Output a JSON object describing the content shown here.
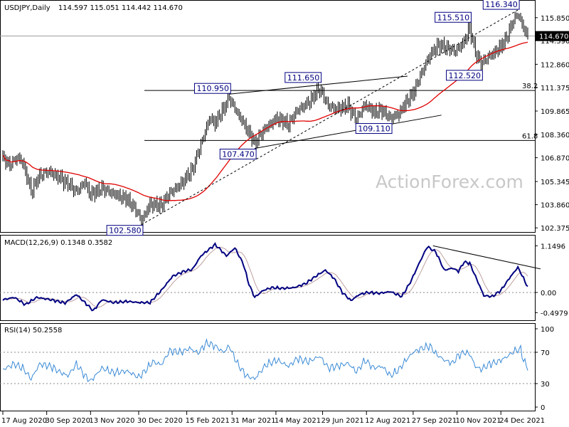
{
  "chart_data": {
    "type": "candlestick",
    "watermark": "ActionForex.com",
    "colors": {
      "price": "#000000",
      "sma": "#e00000",
      "macd": "#000080",
      "signal": "#c0a0a0",
      "rsi": "#3a8ad6",
      "label_box": "#000080",
      "grid": "#000000"
    },
    "price_panel": {
      "title": "USDJPY,Daily",
      "ohlc": "114.597 115.051 114.442 114.670",
      "last_price": "114.670",
      "ylim": [
        102.2,
        116.8
      ],
      "yticks": [
        "115.850",
        "114.390",
        "112.860",
        "111.375",
        "109.865",
        "108.360",
        "106.870",
        "105.345",
        "103.860",
        "102.375"
      ],
      "fib_levels": [
        {
          "label": "38.2",
          "value": 111.18
        },
        {
          "label": "61.8",
          "value": 107.98
        }
      ],
      "swing_labels": [
        {
          "text": "102.580",
          "date_index": 98
        },
        {
          "text": "110.950",
          "date_index": 160
        },
        {
          "text": "107.470",
          "date_index": 178
        },
        {
          "text": "111.650",
          "date_index": 224
        },
        {
          "text": "109.110",
          "date_index": 274
        },
        {
          "text": "115.510",
          "date_index": 330
        },
        {
          "text": "112.520",
          "date_index": 338
        },
        {
          "text": "116.340",
          "date_index": 364
        }
      ],
      "trendlines": [
        {
          "from": [
            98,
            102.58
          ],
          "to": [
            364,
            116.34
          ],
          "style": "dashed"
        },
        {
          "from": [
            160,
            110.95
          ],
          "to": [
            286,
            112.1
          ],
          "style": "solid"
        },
        {
          "from": [
            178,
            107.47
          ],
          "to": [
            310,
            109.6
          ],
          "style": "solid"
        }
      ],
      "anchors": [
        [
          0,
          106.8
        ],
        [
          5,
          106.4
        ],
        [
          10,
          106.9
        ],
        [
          14,
          106.6
        ],
        [
          20,
          104.7
        ],
        [
          26,
          105.7
        ],
        [
          32,
          106.0
        ],
        [
          40,
          105.6
        ],
        [
          46,
          105.2
        ],
        [
          52,
          104.7
        ],
        [
          58,
          105.3
        ],
        [
          62,
          104.5
        ],
        [
          70,
          104.9
        ],
        [
          80,
          104.5
        ],
        [
          88,
          104.2
        ],
        [
          95,
          103.4
        ],
        [
          98,
          102.8
        ],
        [
          104,
          103.9
        ],
        [
          112,
          103.8
        ],
        [
          118,
          104.6
        ],
        [
          126,
          105.2
        ],
        [
          134,
          106.1
        ],
        [
          140,
          107.7
        ],
        [
          146,
          109.4
        ],
        [
          150,
          109.1
        ],
        [
          156,
          110.0
        ],
        [
          160,
          110.7
        ],
        [
          166,
          109.7
        ],
        [
          172,
          108.8
        ],
        [
          178,
          107.8
        ],
        [
          186,
          108.8
        ],
        [
          194,
          109.4
        ],
        [
          202,
          109.0
        ],
        [
          208,
          109.9
        ],
        [
          216,
          110.4
        ],
        [
          224,
          111.3
        ],
        [
          230,
          110.2
        ],
        [
          236,
          110.0
        ],
        [
          244,
          110.2
        ],
        [
          250,
          109.3
        ],
        [
          256,
          110.3
        ],
        [
          262,
          109.8
        ],
        [
          268,
          109.9
        ],
        [
          274,
          109.4
        ],
        [
          280,
          109.7
        ],
        [
          284,
          110.3
        ],
        [
          290,
          111.0
        ],
        [
          296,
          112.3
        ],
        [
          302,
          113.5
        ],
        [
          308,
          114.1
        ],
        [
          314,
          113.9
        ],
        [
          320,
          113.7
        ],
        [
          326,
          114.3
        ],
        [
          330,
          115.2
        ],
        [
          334,
          113.6
        ],
        [
          338,
          112.9
        ],
        [
          344,
          113.4
        ],
        [
          350,
          113.8
        ],
        [
          356,
          114.5
        ],
        [
          360,
          115.5
        ],
        [
          364,
          116.1
        ],
        [
          368,
          115.2
        ],
        [
          371,
          114.67
        ]
      ]
    },
    "macd_panel": {
      "title": "MACD(12,26,9) 0.1348 0.3582",
      "ylim": [
        -0.65,
        1.28
      ],
      "yticks": [
        "1.1496",
        "0.00",
        "-0.4979"
      ],
      "extra_level": 0.0,
      "anchors": [
        [
          0,
          -0.18
        ],
        [
          8,
          -0.12
        ],
        [
          16,
          -0.3
        ],
        [
          24,
          -0.12
        ],
        [
          34,
          -0.18
        ],
        [
          44,
          -0.26
        ],
        [
          52,
          -0.05
        ],
        [
          58,
          -0.25
        ],
        [
          64,
          -0.45
        ],
        [
          70,
          -0.18
        ],
        [
          78,
          -0.25
        ],
        [
          88,
          -0.22
        ],
        [
          96,
          -0.25
        ],
        [
          104,
          -0.25
        ],
        [
          112,
          0.05
        ],
        [
          120,
          0.4
        ],
        [
          128,
          0.52
        ],
        [
          134,
          0.57
        ],
        [
          140,
          0.9
        ],
        [
          146,
          1.07
        ],
        [
          150,
          1.18
        ],
        [
          154,
          1.05
        ],
        [
          158,
          0.9
        ],
        [
          164,
          1.1
        ],
        [
          170,
          0.7
        ],
        [
          174,
          0.2
        ],
        [
          178,
          -0.12
        ],
        [
          184,
          0.05
        ],
        [
          190,
          0.12
        ],
        [
          198,
          0.1
        ],
        [
          206,
          0.12
        ],
        [
          214,
          0.22
        ],
        [
          222,
          0.42
        ],
        [
          228,
          0.55
        ],
        [
          234,
          0.35
        ],
        [
          240,
          0.0
        ],
        [
          246,
          -0.2
        ],
        [
          252,
          -0.05
        ],
        [
          258,
          0.0
        ],
        [
          266,
          -0.02
        ],
        [
          274,
          0.02
        ],
        [
          282,
          -0.1
        ],
        [
          288,
          0.25
        ],
        [
          294,
          0.7
        ],
        [
          300,
          1.13
        ],
        [
          306,
          1.0
        ],
        [
          312,
          0.55
        ],
        [
          318,
          0.6
        ],
        [
          322,
          0.52
        ],
        [
          326,
          0.75
        ],
        [
          330,
          0.72
        ],
        [
          334,
          0.4
        ],
        [
          340,
          -0.08
        ],
        [
          346,
          -0.1
        ],
        [
          352,
          0.05
        ],
        [
          358,
          0.35
        ],
        [
          364,
          0.62
        ],
        [
          368,
          0.35
        ],
        [
          371,
          0.13
        ]
      ],
      "trendline": {
        "from": [
          304,
          1.15
        ],
        "to": [
          380,
          0.58
        ]
      }
    },
    "rsi_panel": {
      "title": "RSI(14) 50.2558",
      "ylim": [
        0,
        100
      ],
      "yticks": [
        "100",
        "70",
        "30",
        "0"
      ],
      "levels": [
        70,
        30
      ],
      "anchors": [
        [
          0,
          48
        ],
        [
          8,
          55
        ],
        [
          14,
          50
        ],
        [
          20,
          36
        ],
        [
          26,
          55
        ],
        [
          34,
          52
        ],
        [
          40,
          45
        ],
        [
          46,
          40
        ],
        [
          52,
          55
        ],
        [
          58,
          40
        ],
        [
          62,
          33
        ],
        [
          70,
          50
        ],
        [
          78,
          44
        ],
        [
          88,
          46
        ],
        [
          96,
          38
        ],
        [
          100,
          45
        ],
        [
          106,
          58
        ],
        [
          112,
          54
        ],
        [
          118,
          72
        ],
        [
          126,
          70
        ],
        [
          132,
          75
        ],
        [
          138,
          69
        ],
        [
          144,
          82
        ],
        [
          150,
          78
        ],
        [
          156,
          70
        ],
        [
          160,
          78
        ],
        [
          166,
          55
        ],
        [
          172,
          40
        ],
        [
          178,
          36
        ],
        [
          186,
          54
        ],
        [
          194,
          60
        ],
        [
          202,
          52
        ],
        [
          208,
          62
        ],
        [
          216,
          58
        ],
        [
          224,
          65
        ],
        [
          230,
          50
        ],
        [
          236,
          52
        ],
        [
          244,
          56
        ],
        [
          250,
          45
        ],
        [
          256,
          60
        ],
        [
          262,
          50
        ],
        [
          268,
          52
        ],
        [
          274,
          40
        ],
        [
          280,
          48
        ],
        [
          284,
          58
        ],
        [
          290,
          70
        ],
        [
          296,
          75
        ],
        [
          302,
          78
        ],
        [
          306,
          68
        ],
        [
          312,
          60
        ],
        [
          318,
          56
        ],
        [
          322,
          66
        ],
        [
          326,
          70
        ],
        [
          330,
          68
        ],
        [
          334,
          52
        ],
        [
          338,
          48
        ],
        [
          344,
          55
        ],
        [
          350,
          58
        ],
        [
          356,
          64
        ],
        [
          362,
          72
        ],
        [
          366,
          74
        ],
        [
          368,
          60
        ],
        [
          371,
          50
        ]
      ]
    },
    "x_labels": [
      {
        "text": "17 Aug 2020",
        "index": 0
      },
      {
        "text": "30 Sep 2020",
        "index": 31
      },
      {
        "text": "13 Nov 2020",
        "index": 62
      },
      {
        "text": "30 Dec 2020",
        "index": 96
      },
      {
        "text": "15 Feb 2021",
        "index": 130
      },
      {
        "text": "31 Mar 2021",
        "index": 162
      },
      {
        "text": "14 May 2021",
        "index": 193
      },
      {
        "text": "29 Jun 2021",
        "index": 226
      },
      {
        "text": "12 Aug 2021",
        "index": 257
      },
      {
        "text": "27 Sep 2021",
        "index": 290
      },
      {
        "text": "10 Nov 2021",
        "index": 321
      },
      {
        "text": "24 Dec 2021",
        "index": 352
      }
    ],
    "bar_count": 372
  }
}
